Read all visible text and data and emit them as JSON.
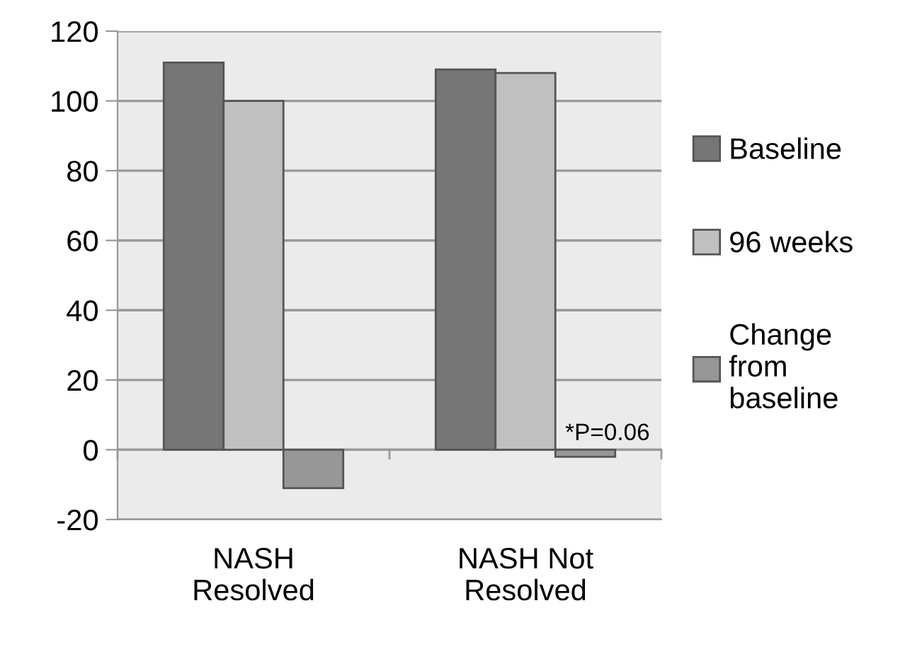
{
  "chart_data": {
    "type": "bar",
    "categories": [
      "NASH Resolved",
      "NASH Not Resolved"
    ],
    "series": [
      {
        "name": "Baseline",
        "color": "#767676",
        "values": [
          111,
          109
        ]
      },
      {
        "name": "96 weeks",
        "color": "#c0c0c0",
        "values": [
          100,
          108
        ]
      },
      {
        "name": "Change from baseline",
        "color": "#979797",
        "values": [
          -11,
          -2
        ]
      }
    ],
    "ylim": [
      -20,
      120
    ],
    "yticks": [
      -20,
      0,
      20,
      40,
      60,
      80,
      100,
      120
    ],
    "grid": "y",
    "legend": "right",
    "annotations": [
      {
        "text": "*P=0.06",
        "x": "NASH Not Resolved",
        "y": -2
      }
    ]
  }
}
